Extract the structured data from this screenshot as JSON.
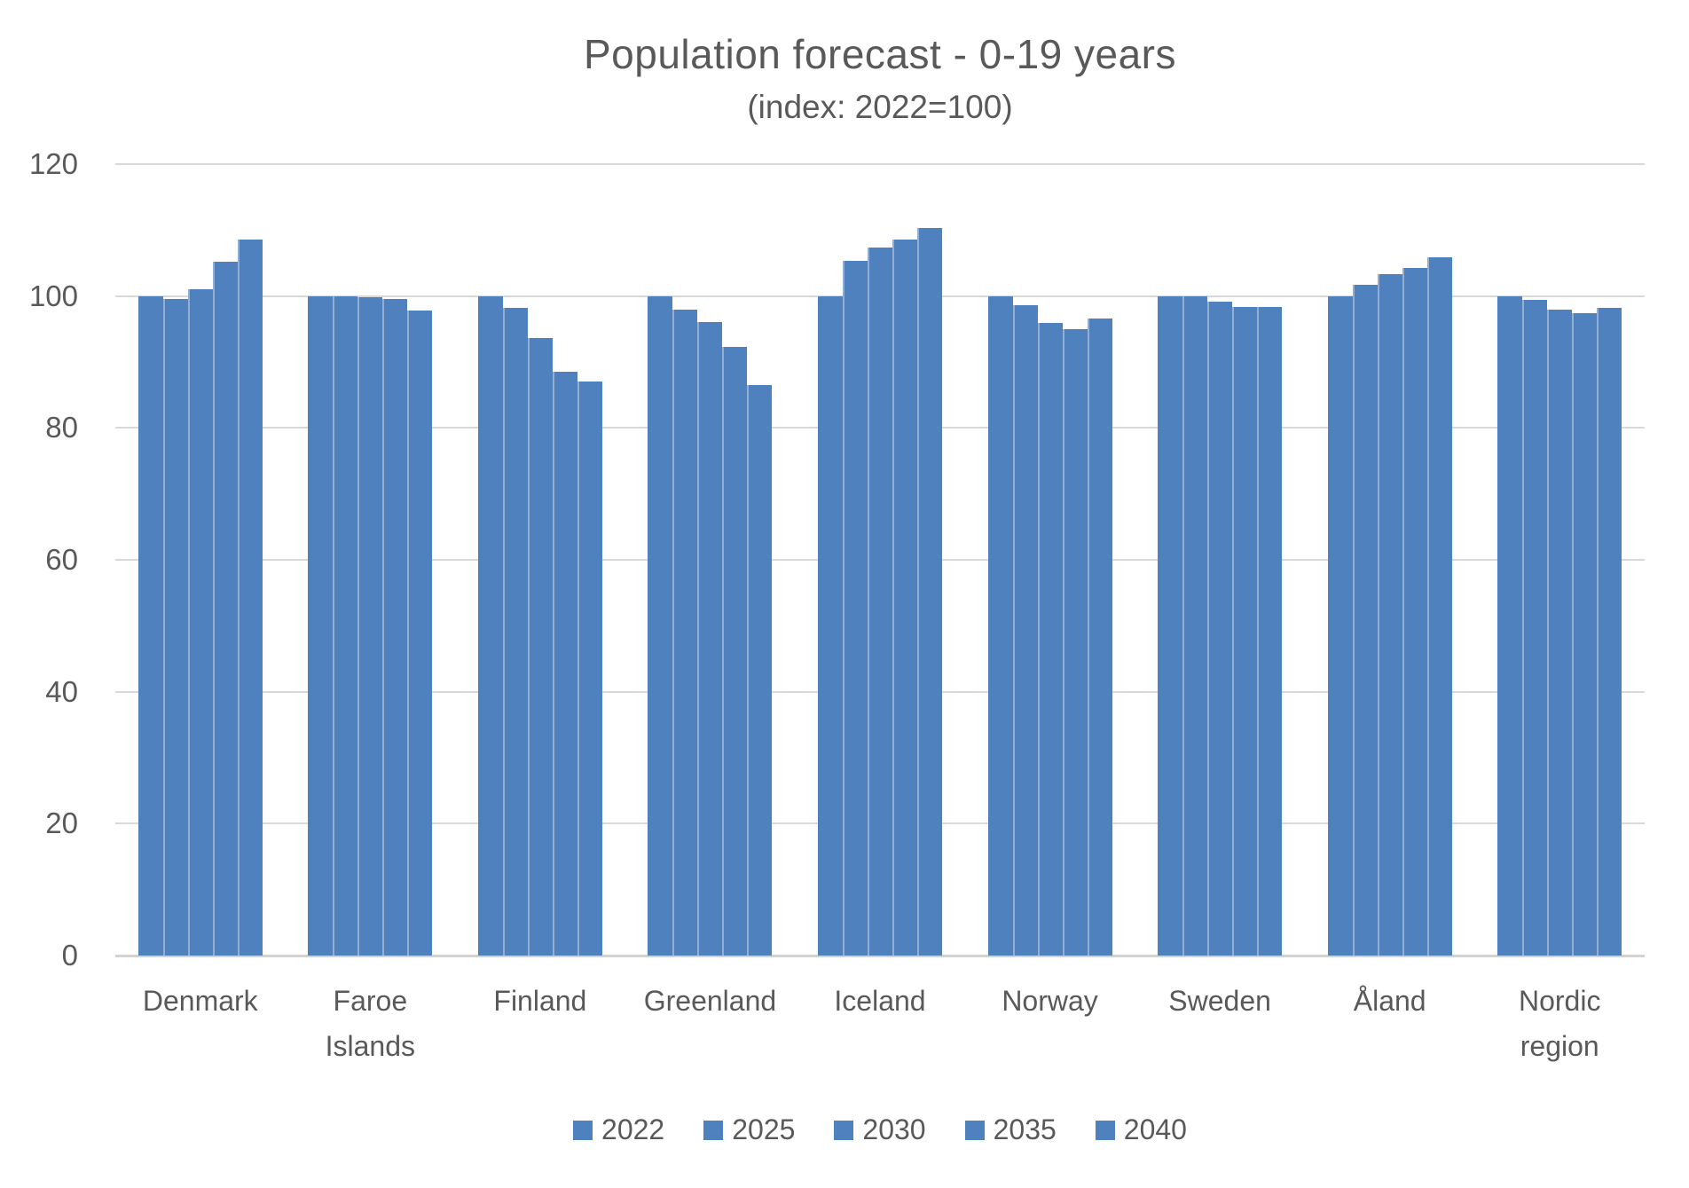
{
  "colors": {
    "bar": "#4e81bd",
    "bar_separator": "#93add3",
    "gridline": "#d9d9d9",
    "axis_line": "#d2d2d2",
    "text": "#595959"
  },
  "chart_data": {
    "type": "bar",
    "title": "Population forecast - 0-19 years",
    "subtitle": "(index: 2022=100)",
    "categories": [
      "Denmark",
      "Faroe\nIslands",
      "Finland",
      "Greenland",
      "Iceland",
      "Norway",
      "Sweden",
      "Åland",
      "Nordic\nregion"
    ],
    "series": [
      {
        "name": "2022",
        "values": [
          100,
          100,
          100,
          100,
          100,
          100,
          100,
          100,
          100
        ]
      },
      {
        "name": "2025",
        "values": [
          99.5,
          99.9,
          98.2,
          98.0,
          105.3,
          98.6,
          99.9,
          101.7,
          99.4
        ]
      },
      {
        "name": "2030",
        "values": [
          101.1,
          99.8,
          93.6,
          96.0,
          107.3,
          95.9,
          99.2,
          103.3,
          97.9
        ]
      },
      {
        "name": "2035",
        "values": [
          105.2,
          99.6,
          88.5,
          92.3,
          108.6,
          95.0,
          98.3,
          104.3,
          97.4
        ]
      },
      {
        "name": "2040",
        "values": [
          108.6,
          97.8,
          87.0,
          86.5,
          110.3,
          96.6,
          98.4,
          105.9,
          98.2
        ]
      }
    ],
    "ylim": [
      0,
      120
    ],
    "ytick_step": 20,
    "yticks": [
      "0",
      "20",
      "40",
      "60",
      "80",
      "100",
      "120"
    ],
    "grid": true,
    "legend_position": "bottom",
    "legend_entries": [
      "2022",
      "2025",
      "2030",
      "2035",
      "2040"
    ]
  }
}
